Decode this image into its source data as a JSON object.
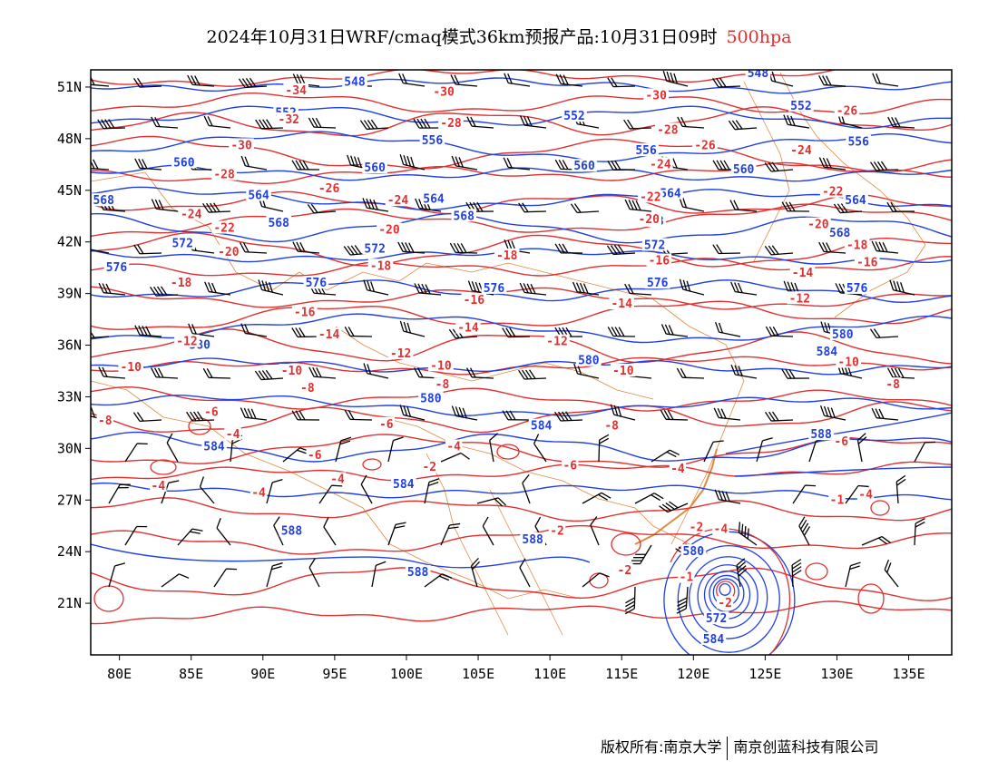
{
  "title": {
    "main": "2024年10月31日WRF/cmaq模式36km预报产品:10月31日09时",
    "level": "500hpa",
    "level_color": "#e03030"
  },
  "map": {
    "lon_ticks": [
      "80E",
      "85E",
      "90E",
      "95E",
      "100E",
      "105E",
      "110E",
      "115E",
      "120E",
      "125E",
      "130E",
      "135E"
    ],
    "lat_ticks": [
      "51N",
      "48N",
      "45N",
      "42N",
      "39N",
      "36N",
      "33N",
      "30N",
      "27N",
      "24N",
      "21N"
    ],
    "lon_range": [
      78,
      138
    ],
    "lat_range": [
      18,
      52
    ],
    "temperature_color": "#e03030",
    "height_color": "#2040e0",
    "border_color": "#e08a40",
    "height_labels": [
      {
        "t": "548",
        "lon": 96.4,
        "lat": 51.3
      },
      {
        "t": "548",
        "lon": 124.5,
        "lat": 51.8
      },
      {
        "t": "552",
        "lon": 91.6,
        "lat": 49.5
      },
      {
        "t": "552",
        "lon": 111.7,
        "lat": 49.3
      },
      {
        "t": "552",
        "lon": 127.5,
        "lat": 49.9
      },
      {
        "t": "556",
        "lon": 101.8,
        "lat": 47.9
      },
      {
        "t": "556",
        "lon": 116.7,
        "lat": 47.3
      },
      {
        "t": "556",
        "lon": 131.5,
        "lat": 47.8
      },
      {
        "t": "560",
        "lon": 84.5,
        "lat": 46.6
      },
      {
        "t": "560",
        "lon": 97.8,
        "lat": 46.3
      },
      {
        "t": "560",
        "lon": 112.4,
        "lat": 46.4
      },
      {
        "t": "560",
        "lon": 123.5,
        "lat": 46.2
      },
      {
        "t": "564",
        "lon": 89.7,
        "lat": 44.7
      },
      {
        "t": "564",
        "lon": 101.9,
        "lat": 44.5
      },
      {
        "t": "564",
        "lon": 118.4,
        "lat": 44.8
      },
      {
        "t": "564",
        "lon": 131.3,
        "lat": 44.4
      },
      {
        "t": "568",
        "lon": 78.9,
        "lat": 44.4
      },
      {
        "t": "568",
        "lon": 91.1,
        "lat": 43.1
      },
      {
        "t": "568",
        "lon": 104.0,
        "lat": 43.5
      },
      {
        "t": "568",
        "lon": 117.2,
        "lat": 43.2
      },
      {
        "t": "568",
        "lon": 130.2,
        "lat": 42.5
      },
      {
        "t": "572",
        "lon": 84.4,
        "lat": 41.9
      },
      {
        "t": "572",
        "lon": 97.8,
        "lat": 41.6
      },
      {
        "t": "572",
        "lon": 117.3,
        "lat": 41.8
      },
      {
        "t": "576",
        "lon": 79.8,
        "lat": 40.5
      },
      {
        "t": "576",
        "lon": 93.7,
        "lat": 39.6
      },
      {
        "t": "576",
        "lon": 106.1,
        "lat": 39.3
      },
      {
        "t": "576",
        "lon": 117.5,
        "lat": 39.6
      },
      {
        "t": "576",
        "lon": 131.4,
        "lat": 39.3
      },
      {
        "t": "580",
        "lon": 85.6,
        "lat": 36.0
      },
      {
        "t": "580",
        "lon": 112.7,
        "lat": 35.1
      },
      {
        "t": "580",
        "lon": 130.4,
        "lat": 36.6
      },
      {
        "t": "580",
        "lon": 101.7,
        "lat": 32.9
      },
      {
        "t": "580",
        "lon": 120.0,
        "lat": 24.0
      },
      {
        "t": "584",
        "lon": 129.3,
        "lat": 35.6
      },
      {
        "t": "584",
        "lon": 109.4,
        "lat": 31.3
      },
      {
        "t": "584",
        "lon": 86.6,
        "lat": 30.1
      },
      {
        "t": "584",
        "lon": 99.8,
        "lat": 27.9
      },
      {
        "t": "588",
        "lon": 128.9,
        "lat": 30.8
      },
      {
        "t": "588",
        "lon": 92.0,
        "lat": 25.2
      },
      {
        "t": "588",
        "lon": 108.8,
        "lat": 24.7
      },
      {
        "t": "588",
        "lon": 100.8,
        "lat": 22.8
      },
      {
        "t": "572",
        "lon": 121.6,
        "lat": 20.1
      },
      {
        "t": "584",
        "lon": 121.4,
        "lat": 18.9
      }
    ],
    "temperature_labels": [
      {
        "t": "-34",
        "lon": 92.3,
        "lat": 50.8
      },
      {
        "t": "-32",
        "lon": 91.8,
        "lat": 49.1
      },
      {
        "t": "-30",
        "lon": 102.6,
        "lat": 50.7
      },
      {
        "t": "-30",
        "lon": 117.4,
        "lat": 50.5
      },
      {
        "t": "-30",
        "lon": 88.5,
        "lat": 47.6
      },
      {
        "t": "-28",
        "lon": 103.1,
        "lat": 48.9
      },
      {
        "t": "-28",
        "lon": 118.2,
        "lat": 48.5
      },
      {
        "t": "-28",
        "lon": 87.3,
        "lat": 45.9
      },
      {
        "t": "-26",
        "lon": 130.7,
        "lat": 49.6
      },
      {
        "t": "-26",
        "lon": 120.8,
        "lat": 47.6
      },
      {
        "t": "-26",
        "lon": 94.6,
        "lat": 45.1
      },
      {
        "t": "-24",
        "lon": 127.5,
        "lat": 47.3
      },
      {
        "t": "-24",
        "lon": 117.7,
        "lat": 46.5
      },
      {
        "t": "-24",
        "lon": 99.4,
        "lat": 44.4
      },
      {
        "t": "-24",
        "lon": 85.0,
        "lat": 43.6
      },
      {
        "t": "-22",
        "lon": 117.0,
        "lat": 44.6
      },
      {
        "t": "-22",
        "lon": 129.7,
        "lat": 44.9
      },
      {
        "t": "-22",
        "lon": 87.3,
        "lat": 42.8
      },
      {
        "t": "-20",
        "lon": 116.9,
        "lat": 43.3
      },
      {
        "t": "-20",
        "lon": 98.8,
        "lat": 42.7
      },
      {
        "t": "-20",
        "lon": 128.7,
        "lat": 43.0
      },
      {
        "t": "-20",
        "lon": 87.6,
        "lat": 41.4
      },
      {
        "t": "-18",
        "lon": 131.4,
        "lat": 41.8
      },
      {
        "t": "-18",
        "lon": 107.0,
        "lat": 41.2
      },
      {
        "t": "-18",
        "lon": 84.3,
        "lat": 39.6
      },
      {
        "t": "-18",
        "lon": 98.2,
        "lat": 40.6
      },
      {
        "t": "-16",
        "lon": 117.6,
        "lat": 40.9
      },
      {
        "t": "-16",
        "lon": 104.7,
        "lat": 38.6
      },
      {
        "t": "-16",
        "lon": 132.1,
        "lat": 40.8
      },
      {
        "t": "-16",
        "lon": 92.9,
        "lat": 37.9
      },
      {
        "t": "-14",
        "lon": 127.6,
        "lat": 40.2
      },
      {
        "t": "-14",
        "lon": 115.0,
        "lat": 38.4
      },
      {
        "t": "-14",
        "lon": 104.3,
        "lat": 37.0
      },
      {
        "t": "-14",
        "lon": 94.6,
        "lat": 36.6
      },
      {
        "t": "-12",
        "lon": 127.4,
        "lat": 38.7
      },
      {
        "t": "-12",
        "lon": 110.5,
        "lat": 36.2
      },
      {
        "t": "-12",
        "lon": 99.6,
        "lat": 35.5
      },
      {
        "t": "-12",
        "lon": 84.7,
        "lat": 36.2
      },
      {
        "t": "-10",
        "lon": 80.8,
        "lat": 34.7
      },
      {
        "t": "-10",
        "lon": 92.0,
        "lat": 34.5
      },
      {
        "t": "-10",
        "lon": 102.4,
        "lat": 34.8
      },
      {
        "t": "-10",
        "lon": 115.1,
        "lat": 34.5
      },
      {
        "t": "-10",
        "lon": 130.8,
        "lat": 35.0
      },
      {
        "t": "-8",
        "lon": 93.1,
        "lat": 33.5
      },
      {
        "t": "-8",
        "lon": 102.5,
        "lat": 33.7
      },
      {
        "t": "-8",
        "lon": 79.0,
        "lat": 31.6
      },
      {
        "t": "-8",
        "lon": 114.3,
        "lat": 31.3
      },
      {
        "t": "-8",
        "lon": 133.9,
        "lat": 33.7
      },
      {
        "t": "-6",
        "lon": 86.4,
        "lat": 32.1
      },
      {
        "t": "-6",
        "lon": 98.6,
        "lat": 31.4
      },
      {
        "t": "-6",
        "lon": 130.3,
        "lat": 30.4
      },
      {
        "t": "-6",
        "lon": 111.4,
        "lat": 29.0
      },
      {
        "t": "-4",
        "lon": 87.9,
        "lat": 30.8
      },
      {
        "t": "-4",
        "lon": 103.3,
        "lat": 30.1
      },
      {
        "t": "-4",
        "lon": 82.7,
        "lat": 27.8
      },
      {
        "t": "-4",
        "lon": 89.7,
        "lat": 27.4
      },
      {
        "t": "-4",
        "lon": 95.2,
        "lat": 28.2
      },
      {
        "t": "-4",
        "lon": 118.9,
        "lat": 28.8
      },
      {
        "t": "-4",
        "lon": 132.0,
        "lat": 27.3
      },
      {
        "t": "-6",
        "lon": 93.6,
        "lat": 29.6
      },
      {
        "t": "-2",
        "lon": 101.6,
        "lat": 28.9
      },
      {
        "t": "-2",
        "lon": 110.5,
        "lat": 25.2
      },
      {
        "t": "-2",
        "lon": 120.2,
        "lat": 25.4
      },
      {
        "t": "-2",
        "lon": 115.2,
        "lat": 22.9
      },
      {
        "t": "-2",
        "lon": 122.2,
        "lat": 21.0
      },
      {
        "t": "-1",
        "lon": 130.0,
        "lat": 27.0
      },
      {
        "t": "-1",
        "lon": 119.5,
        "lat": 22.5
      },
      {
        "t": "-4",
        "lon": 121.9,
        "lat": 25.3
      }
    ]
  },
  "credit": {
    "left": "版权所有:南京大学",
    "right": "南京创蓝科技有限公司"
  }
}
